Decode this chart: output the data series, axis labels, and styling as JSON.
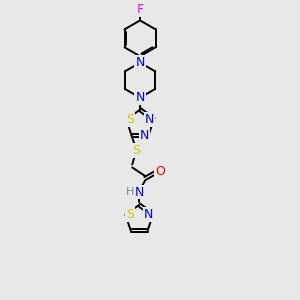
{
  "bg_color": "#e8e8e8",
  "atom_colors": {
    "C": "#000000",
    "N": "#0000ee",
    "S": "#cccc00",
    "O": "#ff0000",
    "F": "#ff00ff",
    "H": "#888888"
  },
  "bond_color": "#000000",
  "figsize": [
    3.0,
    3.0
  ],
  "dpi": 100,
  "lw": 1.4,
  "fs": 9.0,
  "fs_small": 8.0
}
